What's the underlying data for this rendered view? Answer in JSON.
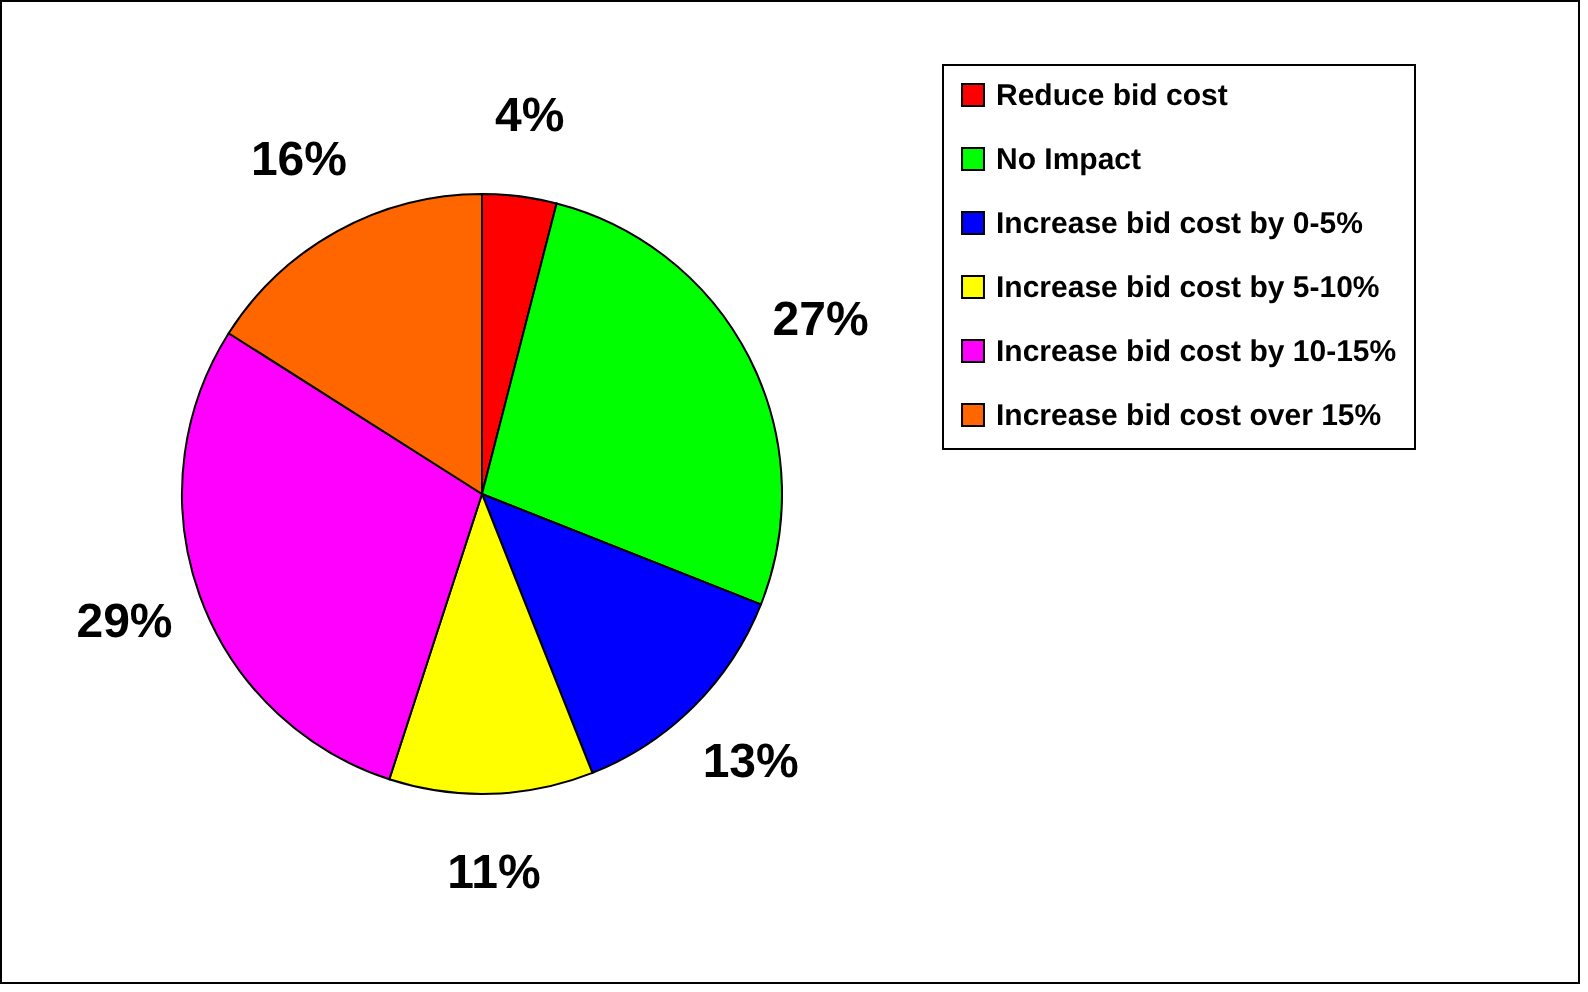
{
  "chart_data": {
    "type": "pie",
    "categories": [
      "Reduce bid cost",
      "No Impact",
      "Increase bid cost by 0-5%",
      "Increase bid cost by 5-10%",
      "Increase bid cost by 10-15%",
      "Increase bid cost over 15%"
    ],
    "values": [
      4,
      27,
      13,
      11,
      29,
      16
    ],
    "colors": [
      "#ff0000",
      "#00ff00",
      "#0000ff",
      "#ffff00",
      "#ff00ff",
      "#ff6600"
    ],
    "value_labels": [
      "4%",
      "27%",
      "13%",
      "11%",
      "29%",
      "16%"
    ],
    "legend": "right"
  }
}
